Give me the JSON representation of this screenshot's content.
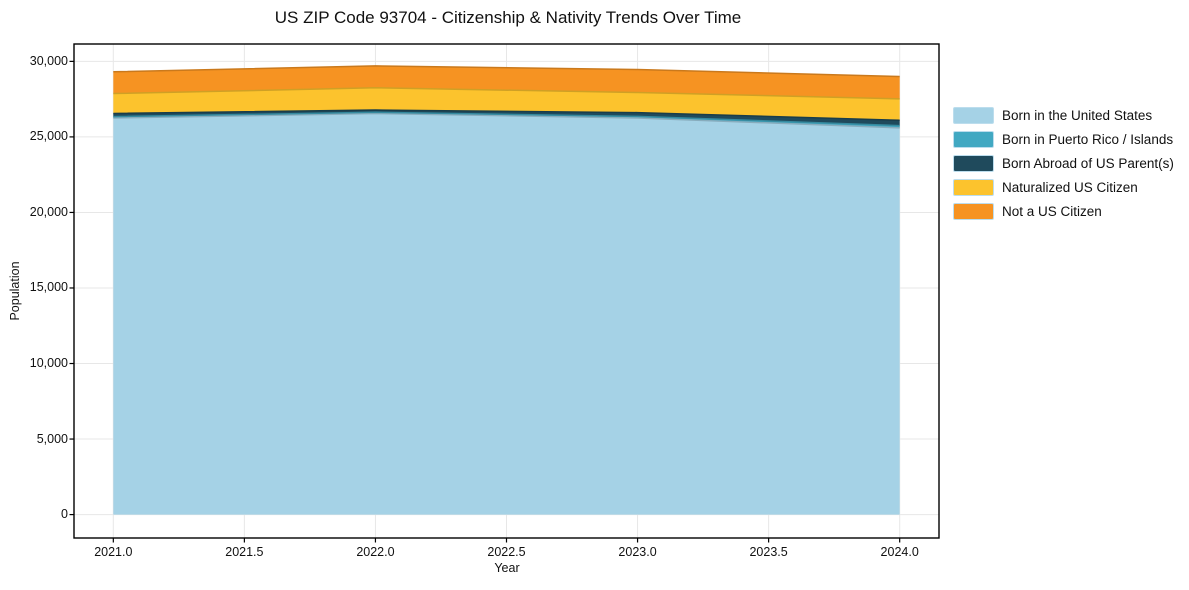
{
  "title": "US ZIP Code 93704 - Citizenship & Nativity Trends Over Time",
  "axes": {
    "x_label": "Year",
    "y_label": "Population",
    "x_tick_labels": [
      "2021.0",
      "2021.5",
      "2022.0",
      "2022.5",
      "2023.0",
      "2023.5",
      "2024.0"
    ],
    "y_tick_labels": [
      "0",
      "5,000",
      "10,000",
      "15,000",
      "20,000",
      "25,000",
      "30,000"
    ]
  },
  "legend": {
    "position": "outside-right",
    "items": [
      {
        "label": "Born in the United States",
        "color": "#a5d2e6"
      },
      {
        "label": "Born in Puerto Rico / Islands",
        "color": "#41a8c2"
      },
      {
        "label": "Born Abroad of US Parent(s)",
        "color": "#1f4a5c"
      },
      {
        "label": "Naturalized US Citizen",
        "color": "#fcc32d"
      },
      {
        "label": "Not a US Citizen",
        "color": "#f69322"
      }
    ]
  },
  "chart_data": {
    "type": "area",
    "stacked": true,
    "title": "US ZIP Code 93704 - Citizenship & Nativity Trends Over Time",
    "xlabel": "Year",
    "ylabel": "Population",
    "x": [
      2021,
      2022,
      2023,
      2024
    ],
    "series": [
      {
        "name": "Born in the United States",
        "color": "#a5d2e6",
        "values": [
          26250,
          26550,
          26250,
          25600
        ]
      },
      {
        "name": "Born in Puerto Rico / Islands",
        "color": "#41a8c2",
        "values": [
          90,
          80,
          110,
          150
        ]
      },
      {
        "name": "Born Abroad of US Parent(s)",
        "color": "#1f4a5c",
        "values": [
          210,
          150,
          250,
          350
        ]
      },
      {
        "name": "Naturalized US Citizen",
        "color": "#fcc32d",
        "values": [
          1320,
          1470,
          1330,
          1420
        ]
      },
      {
        "name": "Not a US Citizen",
        "color": "#f69322",
        "values": [
          1440,
          1450,
          1520,
          1480
        ]
      }
    ],
    "stacked_totals": [
      29310,
      29700,
      29460,
      29000
    ],
    "x_ticks": [
      2021.0,
      2021.5,
      2022.0,
      2022.5,
      2023.0,
      2023.5,
      2024.0
    ],
    "y_ticks": [
      0,
      5000,
      10000,
      15000,
      20000,
      25000,
      30000
    ],
    "xlim": [
      2020.85,
      2024.15
    ],
    "ylim": [
      -1550,
      31150
    ],
    "grid": true,
    "legend_position": "outside-right"
  }
}
